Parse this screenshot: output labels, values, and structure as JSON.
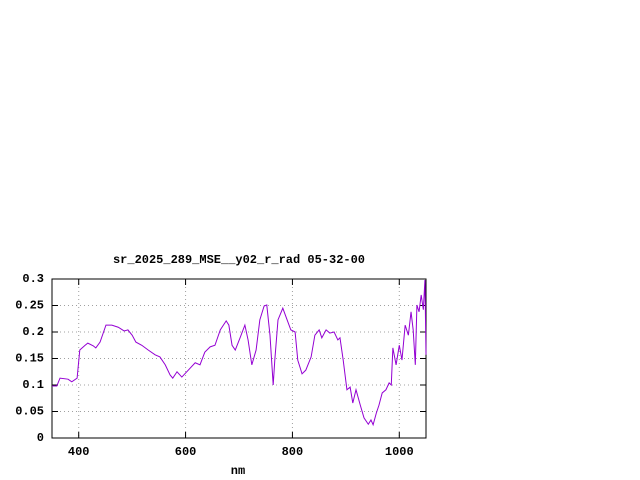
{
  "chart_data": {
    "type": "line",
    "title": "sr_2025_289_MSE__y02_r_rad 05-32-00",
    "x_label": "nm",
    "xlim": [
      350,
      1050
    ],
    "xticks": [
      400,
      600,
      800,
      1000
    ],
    "ylim": [
      0,
      0.3
    ],
    "yticks": [
      0,
      0.05,
      0.1,
      0.15,
      0.2,
      0.25,
      0.3
    ],
    "grid": true,
    "series": [
      {
        "color": "#9400d3",
        "x": [
          350,
          359,
          365,
          380,
          387,
          397,
          402,
          412,
          417,
          427,
          432,
          440,
          451,
          462,
          474,
          485,
          492,
          500,
          507,
          518,
          530,
          543,
          552,
          562,
          571,
          576,
          584,
          593,
          605,
          618,
          627,
          636,
          646,
          655,
          665,
          676,
          681,
          687,
          693,
          702,
          711,
          717,
          724,
          732,
          739,
          747,
          752,
          758,
          764,
          767,
          773,
          782,
          790,
          797,
          805,
          810,
          818,
          825,
          835,
          842,
          850,
          855,
          863,
          870,
          878,
          885,
          889,
          895,
          902,
          908,
          913,
          919,
          927,
          934,
          942,
          947,
          951,
          957,
          962,
          968,
          975,
          981,
          985,
          988,
          994,
          1000,
          1005,
          1011,
          1017,
          1022,
          1026,
          1030,
          1033,
          1037,
          1041,
          1045,
          1048,
          1050
        ],
        "values": [
          0.098,
          0.098,
          0.113,
          0.111,
          0.106,
          0.113,
          0.166,
          0.175,
          0.179,
          0.174,
          0.17,
          0.181,
          0.213,
          0.213,
          0.209,
          0.202,
          0.204,
          0.194,
          0.181,
          0.175,
          0.166,
          0.157,
          0.153,
          0.138,
          0.119,
          0.113,
          0.125,
          0.115,
          0.128,
          0.142,
          0.138,
          0.162,
          0.172,
          0.175,
          0.204,
          0.221,
          0.213,
          0.175,
          0.166,
          0.189,
          0.213,
          0.185,
          0.138,
          0.166,
          0.223,
          0.249,
          0.251,
          0.194,
          0.1,
          0.147,
          0.223,
          0.245,
          0.223,
          0.204,
          0.2,
          0.147,
          0.121,
          0.128,
          0.153,
          0.194,
          0.204,
          0.189,
          0.204,
          0.198,
          0.2,
          0.185,
          0.189,
          0.147,
          0.091,
          0.096,
          0.066,
          0.091,
          0.062,
          0.038,
          0.026,
          0.034,
          0.025,
          0.047,
          0.062,
          0.085,
          0.091,
          0.104,
          0.1,
          0.17,
          0.138,
          0.175,
          0.147,
          0.213,
          0.194,
          0.238,
          0.204,
          0.138,
          0.251,
          0.238,
          0.27,
          0.242,
          0.298,
          0.157
        ]
      }
    ]
  }
}
